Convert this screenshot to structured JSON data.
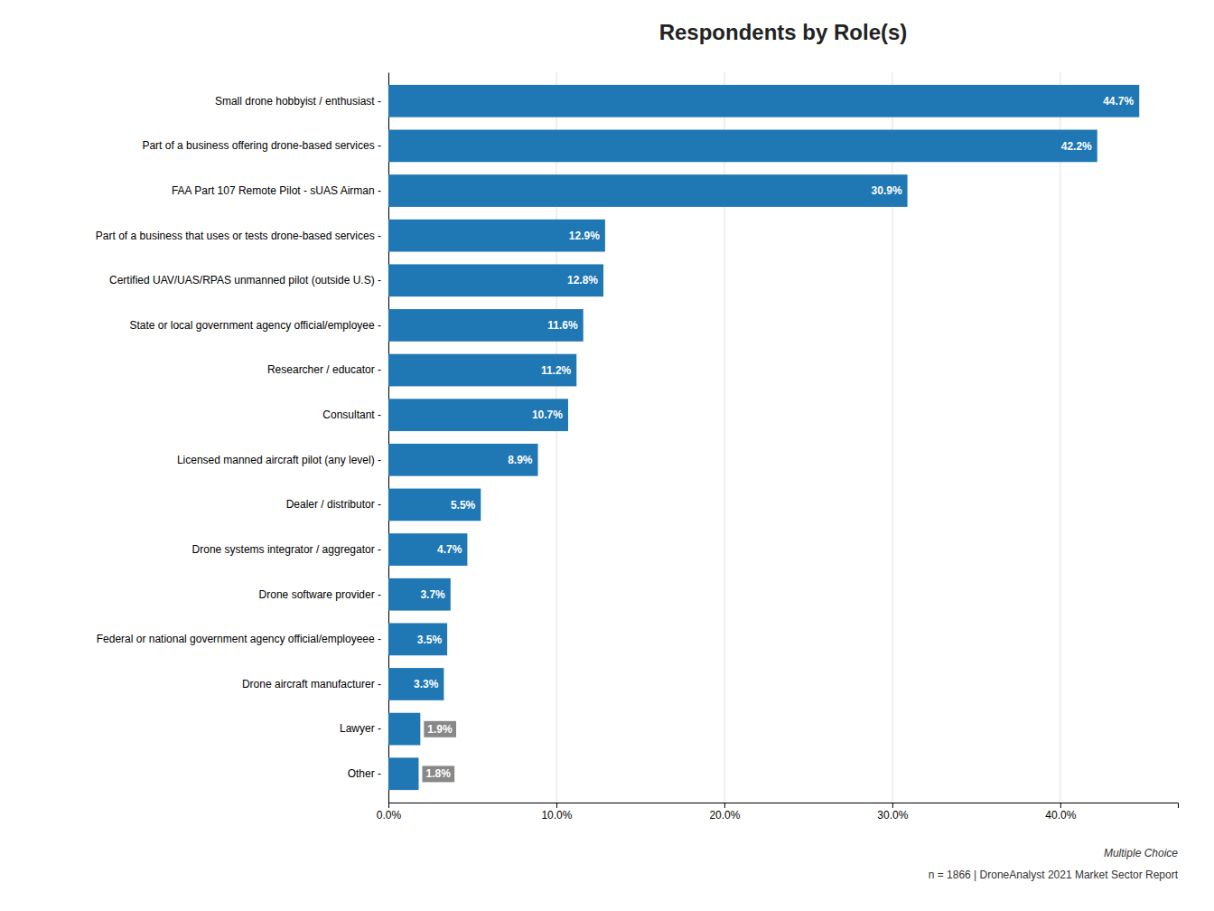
{
  "chart_data": {
    "type": "bar",
    "orientation": "horizontal",
    "title": "Respondents by Role(s)",
    "categories": [
      "Small drone hobbyist / enthusiast -",
      "Part of a business offering drone-based services -",
      "FAA Part 107 Remote Pilot - sUAS Airman -",
      "Part of a business that uses or tests drone-based services -",
      "Certified UAV/UAS/RPAS unmanned pilot (outside U.S) -",
      "State or local government agency official/employee -",
      "Researcher / educator -",
      "Consultant -",
      "Licensed manned aircraft pilot (any level) -",
      "Dealer / distributor -",
      "Drone systems integrator / aggregator -",
      "Drone software provider -",
      "Federal or national government agency official/employeee -",
      "Drone aircraft manufacturer -",
      "Lawyer -",
      "Other -"
    ],
    "values": [
      44.7,
      42.2,
      30.9,
      12.9,
      12.8,
      11.6,
      11.2,
      10.7,
      8.9,
      5.5,
      4.7,
      3.7,
      3.5,
      3.3,
      1.9,
      1.8
    ],
    "value_labels": [
      "44.7%",
      "42.2%",
      "30.9%",
      "12.9%",
      "12.8%",
      "11.6%",
      "11.2%",
      "10.7%",
      "8.9%",
      "5.5%",
      "4.7%",
      "3.7%",
      "3.5%",
      "3.3%",
      "1.9%",
      "1.8%"
    ],
    "data_labels": true,
    "xlim": [
      0,
      47
    ],
    "xticks": [
      {
        "value": 0,
        "label": "0.0%"
      },
      {
        "value": 10,
        "label": "10.0%"
      },
      {
        "value": 20,
        "label": "20.0%"
      },
      {
        "value": 30,
        "label": "30.0%"
      },
      {
        "value": 40,
        "label": "40.0%"
      }
    ],
    "grid": true,
    "annotations": [
      "Multiple Choice",
      "n = 1866   |   DroneAnalyst 2021 Market Sector Report"
    ]
  }
}
